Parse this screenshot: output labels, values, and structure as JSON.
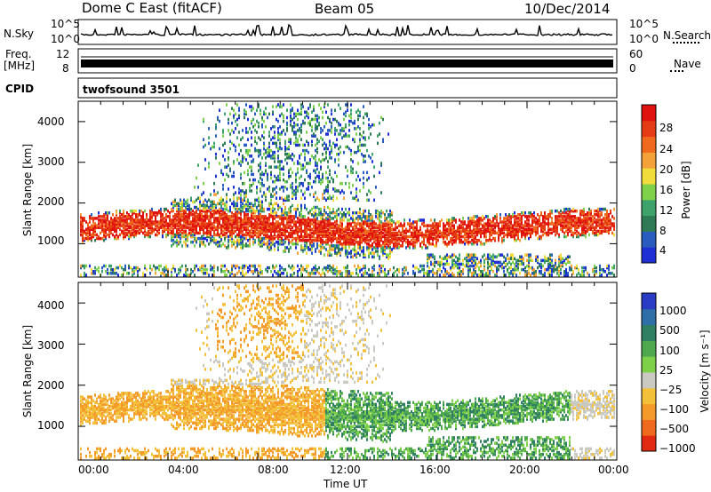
{
  "header": {
    "radar": "Dome C East (fitACF)",
    "beam": "Beam 05",
    "date": "10/Dec/2014"
  },
  "side_labels": {
    "nsky": "N.Sky",
    "freq_line1": "Freq.",
    "freq_line2": "[MHz]",
    "cpid": "CPID",
    "nsearch": "N.Search",
    "nave": "Nave"
  },
  "noise_panel": {
    "left_top": "10^5",
    "left_bottom": "10^0",
    "right_top": "10^5",
    "right_bottom": "10^0"
  },
  "freq_panel": {
    "left_top": "12",
    "left_bottom": "8",
    "right_top": "60",
    "right_bottom": "0"
  },
  "cpid_panel": {
    "label": "twofsound 3501"
  },
  "colors": {
    "power_scale": [
      "#1f2fd6",
      "#2a5cbf",
      "#2e7a55",
      "#3ea36a",
      "#7fd04a",
      "#f0dc3a",
      "#f3a23a",
      "#ef6a1c",
      "#e53b14",
      "#e0120f"
    ],
    "velocity_scale": [
      "#2a3cc4",
      "#2e6fa8",
      "#2f7f62",
      "#4fa84e",
      "#7ed04a",
      "#c9c9c2",
      "#f3c03a",
      "#f39a2a",
      "#ef6a1c",
      "#e22a12"
    ]
  },
  "chart_data": [
    {
      "type": "heatmap",
      "quantity": "power",
      "ylabel": "Slant Range [km]",
      "y_ticks": [
        "1000",
        "2000",
        "3000",
        "4000"
      ],
      "ylim": [
        180,
        4500
      ],
      "x_ticks": [
        "00:00",
        "04:00",
        "08:00",
        "12:00",
        "16:00",
        "20:00",
        "00:00"
      ],
      "colorbar": {
        "label": "Power [dB]",
        "ticks": [
          "4",
          "8",
          "12",
          "16",
          "20",
          "24",
          "28"
        ],
        "range": [
          0,
          30
        ]
      }
    },
    {
      "type": "heatmap",
      "quantity": "velocity",
      "ylabel": "Slant Range [km]",
      "y_ticks": [
        "1000",
        "2000",
        "3000",
        "4000"
      ],
      "ylim": [
        180,
        4500
      ],
      "x_ticks": [
        "00:00",
        "04:00",
        "08:00",
        "12:00",
        "16:00",
        "20:00",
        "00:00"
      ],
      "xlabel": "Time UT",
      "colorbar": {
        "label": "Velocity [m s⁻¹]",
        "ticks": [
          "1000",
          "500",
          "100",
          "25",
          "−25",
          "−100",
          "−500",
          "−1000"
        ]
      }
    }
  ]
}
